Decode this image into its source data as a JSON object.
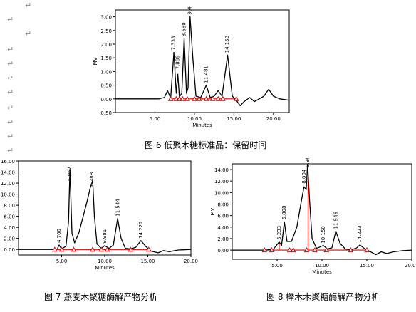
{
  "captions": {
    "fig6": "图 6 低聚木糖标准品：保留时间",
    "fig7": "图 7 燕麦木聚糖酶解产物分析",
    "fig8": "图 8 榉木木聚糖酶解产物分析"
  },
  "paragraph_mark": "↵",
  "chart_data": [
    {
      "type": "line",
      "id": "fig6",
      "xlabel": "Minutes",
      "ylabel": "MV",
      "xlim": [
        0,
        22
      ],
      "ylim": [
        -0.5,
        3.25
      ],
      "xticks": [
        5,
        10,
        15,
        20
      ],
      "xtick_labels": [
        "5.00",
        "10.00",
        "15.00",
        "20.00"
      ],
      "yticks": [
        -0.5,
        0,
        0.5,
        1,
        1.5,
        2,
        2.5,
        3
      ],
      "ytick_labels": [
        "-0.50",
        "0.00",
        "0.50",
        "1.00",
        "1.50",
        "2.00",
        "2.50",
        "3.00"
      ],
      "peak_labels": [
        {
          "x": 7.333,
          "text": "7.333",
          "top": 1.7
        },
        {
          "x": 7.89,
          "text": "7.889",
          "top": 1.0
        },
        {
          "x": 8.68,
          "text": "8.680",
          "top": 2.2
        },
        {
          "x": 9.44,
          "text": "9.444",
          "top": 3.0
        },
        {
          "x": 11.481,
          "text": "11.481",
          "top": 0.5
        },
        {
          "x": 14.153,
          "text": "14.153",
          "top": 1.6
        }
      ],
      "series": [
        {
          "x": [
            0,
            5.5,
            6.2,
            6.6,
            7.0,
            7.4,
            7.7,
            7.9,
            8.1,
            8.4,
            8.7,
            9.0,
            9.2,
            9.45,
            9.8,
            10.2,
            10.8,
            11.5,
            12.0,
            12.5,
            13.0,
            13.5,
            14.2,
            14.8,
            15.3,
            15.8,
            16.3,
            17.0,
            17.6,
            18.2,
            18.8,
            19.4,
            20.0,
            20.8,
            22.0
          ],
          "y": [
            0,
            0,
            0.05,
            0.3,
            0.02,
            1.7,
            0.2,
            0.9,
            0.08,
            0.2,
            2.2,
            0.2,
            0.4,
            3.0,
            1.5,
            0.1,
            0.05,
            0.5,
            0.05,
            0.1,
            0.3,
            0.1,
            1.6,
            0.1,
            -0.05,
            -0.25,
            -0.1,
            0.05,
            -0.1,
            0.0,
            0.1,
            0.35,
            0.1,
            0.0,
            -0.05
          ]
        }
      ],
      "markers": [
        7.0,
        7.7,
        8.1,
        8.5,
        9.1,
        10.0,
        10.6,
        11.5,
        12.3,
        13.0,
        13.6,
        15.3
      ],
      "marker_y": 0
    },
    {
      "type": "line",
      "id": "fig7",
      "xlabel": "Minutes",
      "ylabel": "MV",
      "xlim": [
        0,
        20
      ],
      "ylim": [
        -1,
        16
      ],
      "xticks": [
        5,
        10,
        15,
        20
      ],
      "xtick_labels": [
        "5.00",
        "10.00",
        "15.00",
        "20.00"
      ],
      "yticks": [
        0,
        2,
        4,
        6,
        8,
        10,
        12,
        14,
        16
      ],
      "ytick_labels": [
        "0.00",
        "2.00",
        "4.00",
        "6.00",
        "8.00",
        "10.00",
        "12.00",
        "14.00",
        "16.00"
      ],
      "peak_labels": [
        {
          "x": 4.7,
          "text": "4.700",
          "top": 0.8
        },
        {
          "x": 5.967,
          "text": "5.967",
          "top": 12.0
        },
        {
          "x": 8.5,
          "text": "8.388",
          "top": 11.0
        },
        {
          "x": 9.981,
          "text": "9.981",
          "top": 0.7
        },
        {
          "x": 11.544,
          "text": "11.544",
          "top": 5.6
        },
        {
          "x": 14.222,
          "text": "14.222",
          "top": 1.6
        }
      ],
      "series": [
        {
          "x": [
            0,
            4.0,
            4.5,
            4.7,
            5.0,
            5.5,
            5.8,
            5.97,
            6.2,
            6.5,
            7.0,
            7.5,
            8.0,
            8.3,
            8.6,
            8.8,
            9.1,
            9.6,
            10.0,
            10.5,
            11.0,
            11.5,
            11.9,
            12.4,
            13.0,
            13.6,
            14.2,
            14.8,
            15.4,
            16.2,
            16.8,
            17.5,
            18.5,
            20.0
          ],
          "y": [
            0,
            0,
            0.1,
            0.8,
            0.1,
            0.6,
            5.0,
            14.5,
            3.0,
            1.2,
            3.0,
            6.0,
            9.0,
            11.0,
            12.5,
            6.0,
            1.0,
            0.2,
            0.7,
            0.2,
            0.8,
            5.6,
            2.0,
            0.2,
            0.1,
            0.4,
            1.6,
            0.5,
            -0.3,
            -0.6,
            -0.2,
            -0.4,
            -0.1,
            0
          ]
        }
      ],
      "markers": [
        4.2,
        5.0,
        6.4,
        8.6,
        9.6,
        10.3,
        13.0,
        15.1
      ],
      "marker_y": 0,
      "drop_lines": []
    },
    {
      "type": "line",
      "id": "fig8",
      "xlabel": "Minutes",
      "ylabel": "MV",
      "xlim": [
        0,
        20
      ],
      "ylim": [
        -1.6,
        15
      ],
      "xticks": [
        5,
        10,
        15,
        20
      ],
      "xtick_labels": [
        "5.00",
        "10.00",
        "15.00",
        "20.00"
      ],
      "yticks": [
        0,
        2,
        4,
        6,
        8,
        10,
        12,
        14
      ],
      "ytick_labels": [
        "0.00",
        "2.00",
        "4.00",
        "6.00",
        "8.00",
        "10.00",
        "12.00",
        "14.00"
      ],
      "peak_labels": [
        {
          "x": 5.233,
          "text": "5.233",
          "top": 1.4
        },
        {
          "x": 5.808,
          "text": "5.808",
          "top": 4.9
        },
        {
          "x": 8.004,
          "text": "8.004",
          "top": 11.2
        },
        {
          "x": 8.4,
          "text": "8.369",
          "top": 14.0
        },
        {
          "x": 10.15,
          "text": "10.150",
          "top": 0.8
        },
        {
          "x": 11.546,
          "text": "11.546",
          "top": 3.3
        },
        {
          "x": 14.223,
          "text": "14.223",
          "top": 0.9
        }
      ],
      "series": [
        {
          "x": [
            0,
            3.8,
            4.6,
            5.23,
            5.5,
            5.81,
            6.1,
            6.6,
            7.2,
            7.7,
            8.0,
            8.25,
            8.4,
            8.6,
            8.9,
            9.4,
            10.15,
            10.6,
            11.1,
            11.55,
            12.0,
            12.6,
            13.2,
            13.8,
            14.22,
            14.7,
            15.3,
            16.0,
            16.6,
            17.2,
            18.0,
            19.0,
            20.0
          ],
          "y": [
            0,
            0,
            0.2,
            1.4,
            0.8,
            4.9,
            1.5,
            1.5,
            4.0,
            8.5,
            11.0,
            10.5,
            15.0,
            9.0,
            2.0,
            0.3,
            0.8,
            0.2,
            0.4,
            3.3,
            1.2,
            0.2,
            0.1,
            0.3,
            0.9,
            0.3,
            -0.2,
            -0.8,
            -0.3,
            -0.6,
            -0.3,
            -0.1,
            0
          ]
        }
      ],
      "markers": [
        3.6,
        4.4,
        6.4,
        6.8,
        8.3,
        9.2,
        10.5,
        13.2,
        15.0
      ],
      "marker_y": 0,
      "drop_lines": [
        5.23,
        8.45
      ]
    }
  ]
}
